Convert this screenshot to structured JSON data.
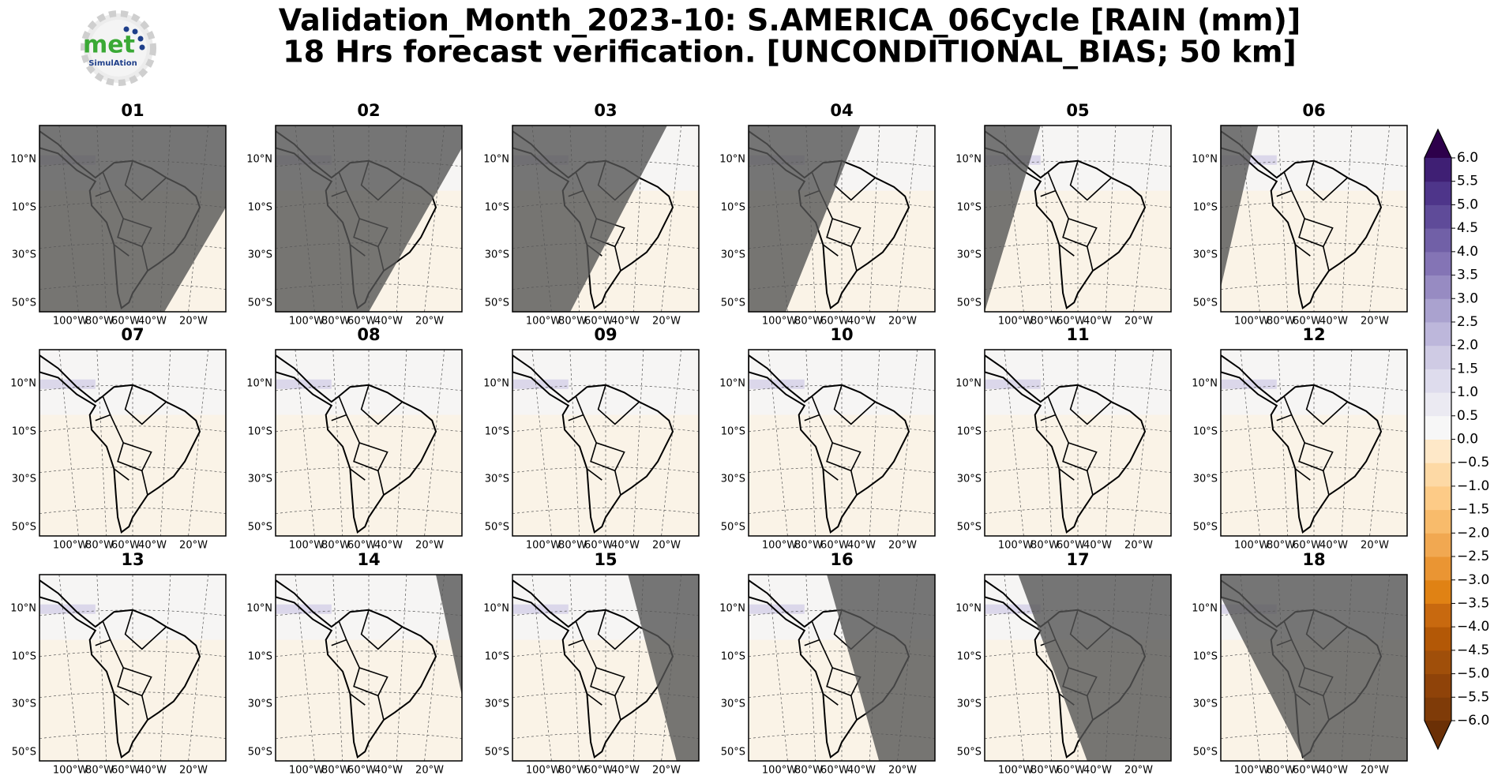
{
  "title": "Validation_Month_2023-10: S.AMERICA_06Cycle [RAIN (mm)]",
  "subtitle": "18 Hrs forecast verification. [UNCONDITIONAL_BIAS; 50 km]",
  "logo": {
    "name": "met",
    "tagline": "SimulAtion"
  },
  "panels": [
    "01",
    "02",
    "03",
    "04",
    "05",
    "06",
    "07",
    "08",
    "09",
    "10",
    "11",
    "12",
    "13",
    "14",
    "15",
    "16",
    "17",
    "18"
  ],
  "lat_labels": [
    "10°N",
    "10°S",
    "30°S",
    "50°S"
  ],
  "lon_labels": [
    "100°W",
    "80°W",
    "60°W",
    "40°W",
    "20°W"
  ],
  "colorbar": {
    "clim": [
      -6,
      6
    ],
    "ticks": [
      {
        "value": 6,
        "label": "6.0"
      },
      5.5,
      {
        "value": 5,
        "label": "5.0"
      },
      4.5,
      {
        "value": 4,
        "label": "4.0"
      },
      3.5,
      {
        "value": 3,
        "label": "3.0"
      },
      2.5,
      {
        "value": 2,
        "label": "2.0"
      },
      1.5,
      {
        "value": 1,
        "label": "1.0"
      },
      0.5,
      {
        "value": 0,
        "label": "0.0"
      },
      {
        "value": -0.5,
        "label": "−0.5"
      },
      {
        "value": -1,
        "label": "−1.0"
      },
      {
        "value": -1.5,
        "label": "−1.5"
      },
      {
        "value": -2,
        "label": "−2.0"
      },
      {
        "value": -2.5,
        "label": "−2.5"
      },
      {
        "value": -3,
        "label": "−3.0"
      },
      {
        "value": -3.5,
        "label": "−3.5"
      },
      {
        "value": -4,
        "label": "−4.0"
      },
      {
        "value": -4.5,
        "label": "−4.5"
      },
      {
        "value": -5,
        "label": "−5.0"
      },
      {
        "value": -5.5,
        "label": "−5.5"
      },
      {
        "value": -6,
        "label": "−6.0"
      }
    ],
    "colors": [
      "#7f3b08",
      "#8f4309",
      "#a04f0a",
      "#b35806",
      "#c8690f",
      "#e08214",
      "#ea9533",
      "#f1a851",
      "#f8bb6b",
      "#fdcb87",
      "#fdd9a5",
      "#fee8c8",
      "#f7f7f7",
      "#ebeaf2",
      "#dedced",
      "#cfcbe4",
      "#bdb7db",
      "#aaa2cf",
      "#978bc2",
      "#8474b5",
      "#7160a7",
      "#5f4b99",
      "#4e358a",
      "#3f1f74"
    ],
    "under_color": "#6b3006",
    "over_color": "#2d004b"
  }
}
